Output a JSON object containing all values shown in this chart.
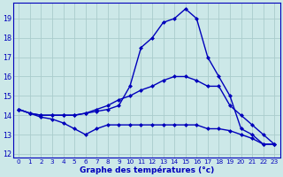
{
  "title": "Graphe des températures (°c)",
  "bg_color": "#cce8e8",
  "grid_color": "#aacccc",
  "line_color": "#0000bb",
  "xlim_min": -0.5,
  "xlim_max": 23.5,
  "ylim_min": 11.8,
  "ylim_max": 19.8,
  "xticks": [
    0,
    1,
    2,
    3,
    4,
    5,
    6,
    7,
    8,
    9,
    10,
    11,
    12,
    13,
    14,
    15,
    16,
    17,
    18,
    19,
    20,
    21,
    22,
    23
  ],
  "yticks": [
    12,
    13,
    14,
    15,
    16,
    17,
    18,
    19
  ],
  "curve_top_x": [
    0,
    1,
    2,
    3,
    4,
    5,
    6,
    7,
    8,
    9,
    10,
    11,
    12,
    13,
    14,
    15,
    16,
    17,
    18,
    19,
    20,
    21,
    22,
    23
  ],
  "curve_top_y": [
    14.3,
    14.1,
    14.0,
    14.0,
    14.0,
    14.0,
    14.1,
    14.2,
    14.3,
    14.5,
    15.5,
    17.5,
    18.0,
    18.8,
    19.0,
    19.5,
    19.0,
    17.0,
    16.0,
    15.0,
    13.3,
    13.0,
    12.5,
    12.5
  ],
  "curve_mid_x": [
    0,
    1,
    2,
    3,
    4,
    5,
    6,
    7,
    8,
    9,
    10,
    11,
    12,
    13,
    14,
    15,
    16,
    17,
    18,
    19,
    20,
    21,
    22,
    23
  ],
  "curve_mid_y": [
    14.3,
    14.1,
    14.0,
    14.0,
    14.0,
    14.0,
    14.1,
    14.3,
    14.5,
    14.8,
    15.0,
    15.3,
    15.5,
    15.8,
    16.0,
    16.0,
    15.8,
    15.5,
    15.5,
    14.5,
    14.0,
    13.5,
    13.0,
    12.5
  ],
  "curve_bot_x": [
    0,
    1,
    2,
    3,
    4,
    5,
    6,
    7,
    8,
    9,
    10,
    11,
    12,
    13,
    14,
    15,
    16,
    17,
    18,
    19,
    20,
    21,
    22,
    23
  ],
  "curve_bot_y": [
    14.3,
    14.1,
    13.9,
    13.8,
    13.6,
    13.3,
    13.0,
    13.3,
    13.5,
    13.5,
    13.5,
    13.5,
    13.5,
    13.5,
    13.5,
    13.5,
    13.5,
    13.3,
    13.3,
    13.2,
    13.0,
    12.8,
    12.5,
    12.5
  ]
}
